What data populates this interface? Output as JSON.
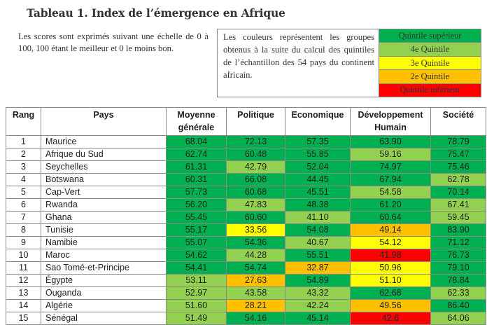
{
  "title": "Tableau 1. Index de l’émergence en Afrique",
  "intro": "Les scores sont exprimés suivant une échelle de 0 à 100,  100 étant le meilleur et 0 le moins bon.",
  "legend": {
    "text": "Les couleurs représentent les groupes  obtenus à la suite du calcul des quintiles de l’échantillon des 54 pays du continent africain.",
    "keys": [
      {
        "label": "Quintile supérieur",
        "class": "q5",
        "color": "#00b050"
      },
      {
        "label": "4e Quintile",
        "class": "q4",
        "color": "#92d050"
      },
      {
        "label": "3e Quintile",
        "class": "q3",
        "color": "#ffff00"
      },
      {
        "label": "2e Quintile",
        "class": "q2",
        "color": "#ffc000"
      },
      {
        "label": "Quintile inférieur",
        "class": "q1",
        "color": "#ff0000"
      }
    ]
  },
  "table": {
    "headers": [
      "Rang",
      "Pays",
      "Moyenne générale",
      "Politique",
      "Economique",
      "Développement Humain",
      "Société"
    ],
    "rows": [
      {
        "rang": "1",
        "pays": "Maurice",
        "vals": [
          "68.04",
          "72.13",
          "57.35",
          "63.90",
          "78.79"
        ],
        "q": [
          "q5",
          "q5",
          "q5",
          "q5",
          "q5"
        ]
      },
      {
        "rang": "2",
        "pays": "Afrique du Sud",
        "vals": [
          "62.74",
          "60.48",
          "55.85",
          "59.16",
          "75.47"
        ],
        "q": [
          "q5",
          "q5",
          "q5",
          "q4",
          "q5"
        ]
      },
      {
        "rang": "3",
        "pays": "Seychelles",
        "vals": [
          "61.31",
          "42.79",
          "52.04",
          "74.97",
          "75.46"
        ],
        "q": [
          "q5",
          "q4",
          "q5",
          "q5",
          "q5"
        ]
      },
      {
        "rang": "4",
        "pays": "Botswana",
        "vals": [
          "60.31",
          "66.08",
          "44.45",
          "67.94",
          "62.78"
        ],
        "q": [
          "q5",
          "q5",
          "q5",
          "q5",
          "q4"
        ]
      },
      {
        "rang": "5",
        "pays": "Cap-Vert",
        "vals": [
          "57.73",
          "60.68",
          "45.51",
          "54.58",
          "70.14"
        ],
        "q": [
          "q5",
          "q5",
          "q5",
          "q4",
          "q5"
        ]
      },
      {
        "rang": "6",
        "pays": "Rwanda",
        "vals": [
          "56.20",
          "47.83",
          "48.38",
          "61.20",
          "67.41"
        ],
        "q": [
          "q5",
          "q4",
          "q5",
          "q5",
          "q4"
        ]
      },
      {
        "rang": "7",
        "pays": "Ghana",
        "vals": [
          "55.45",
          "60.60",
          "41.10",
          "60.64",
          "59.45"
        ],
        "q": [
          "q5",
          "q5",
          "q4",
          "q5",
          "q4"
        ]
      },
      {
        "rang": "8",
        "pays": "Tunisie",
        "vals": [
          "55.17",
          "33.56",
          "54.08",
          "49.14",
          "83.90"
        ],
        "q": [
          "q5",
          "q3",
          "q5",
          "q2",
          "q5"
        ]
      },
      {
        "rang": "9",
        "pays": "Namibie",
        "vals": [
          "55.07",
          "54.36",
          "40.67",
          "54.12",
          "71.12"
        ],
        "q": [
          "q5",
          "q5",
          "q4",
          "q3",
          "q5"
        ]
      },
      {
        "rang": "10",
        "pays": "Maroc",
        "vals": [
          "54.62",
          "44.28",
          "55.51",
          "41.98",
          "76.73"
        ],
        "q": [
          "q5",
          "q4",
          "q5",
          "q1",
          "q5"
        ]
      },
      {
        "rang": "11",
        "pays": "Sao Tomé-et-Principe",
        "vals": [
          "54.41",
          "54.74",
          "32.87",
          "50.96",
          "79.10"
        ],
        "q": [
          "q5",
          "q5",
          "q2",
          "q3",
          "q5"
        ]
      },
      {
        "rang": "12",
        "pays": "Égypte",
        "vals": [
          "53.11",
          "27.63",
          "54.89",
          "51.10",
          "78.84"
        ],
        "q": [
          "q4",
          "q2",
          "q5",
          "q3",
          "q5"
        ]
      },
      {
        "rang": "13",
        "pays": "Ouganda",
        "vals": [
          "52.97",
          "43.58",
          "43.32",
          "62.68",
          "62.33"
        ],
        "q": [
          "q4",
          "q4",
          "q4",
          "q5",
          "q4"
        ]
      },
      {
        "rang": "14",
        "pays": "Algérie",
        "vals": [
          "51.60",
          "28.21",
          "42.24",
          "49.56",
          "86.40"
        ],
        "q": [
          "q4",
          "q2",
          "q4",
          "q2",
          "q5"
        ]
      },
      {
        "rang": "15",
        "pays": "Sénégal",
        "vals": [
          "51.49",
          "54.16",
          "45.14",
          "42.6",
          "64.06"
        ],
        "q": [
          "q4",
          "q5",
          "q5",
          "q1",
          "q4"
        ]
      }
    ]
  }
}
